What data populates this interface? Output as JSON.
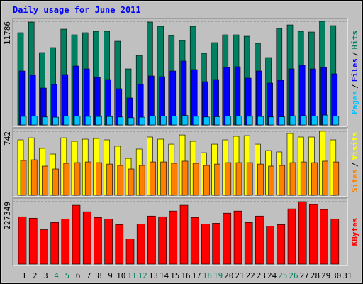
{
  "title": "Daily usage for June 2011",
  "chart_data": [
    {
      "type": "bar",
      "legend_separator": "/",
      "ylim": [
        0,
        11786
      ],
      "yticks": [
        11786
      ],
      "series": [
        {
          "name": "Hits",
          "color": "#008060",
          "values": [
            10492,
            11703,
            8232,
            8797,
            10896,
            10250,
            10492,
            10654,
            10654,
            9524,
            6376,
            7909,
            11703,
            11219,
            10170,
            9605,
            11219,
            8152,
            9362,
            10250,
            10250,
            10089,
            9282,
            7667,
            10977,
            11380,
            10654,
            10573,
            11786,
            11299,
            null
          ]
        },
        {
          "name": "Files",
          "color": "#0000ff",
          "values": [
            6133,
            5650,
            4197,
            4600,
            5730,
            6698,
            6376,
            5407,
            5165,
            4116,
            3067,
            4600,
            5568,
            5488,
            6133,
            7263,
            6295,
            4923,
            5165,
            6537,
            6618,
            5326,
            6133,
            4761,
            5084,
            6376,
            6779,
            6376,
            6537,
            5811,
            null
          ]
        },
        {
          "name": "Pages",
          "color": "#00c0ff",
          "values": [
            970,
            990,
            900,
            880,
            1010,
            990,
            970,
            960,
            950,
            900,
            820,
            880,
            1000,
            990,
            1000,
            1080,
            980,
            900,
            930,
            990,
            1000,
            980,
            960,
            900,
            920,
            1040,
            1060,
            1020,
            1120,
            1010,
            null
          ]
        }
      ]
    },
    {
      "type": "bar",
      "legend_separator": "/",
      "ylim": [
        0,
        742
      ],
      "yticks": [
        742
      ],
      "series": [
        {
          "name": "Visits",
          "color": "#ffff00",
          "values": [
            643,
            667,
            544,
            478,
            667,
            626,
            651,
            659,
            643,
            569,
            428,
            536,
            676,
            651,
            593,
            700,
            626,
            494,
            593,
            643,
            684,
            692,
            593,
            519,
            503,
            717,
            676,
            676,
            742,
            643,
            null
          ]
        },
        {
          "name": "Sites",
          "color": "#ff8000",
          "values": [
            404,
            412,
            338,
            305,
            371,
            379,
            387,
            379,
            362,
            346,
            305,
            346,
            387,
            387,
            371,
            396,
            371,
            346,
            362,
            379,
            379,
            379,
            362,
            338,
            346,
            379,
            387,
            379,
            396,
            387,
            null
          ]
        }
      ]
    },
    {
      "type": "bar",
      "ylim": [
        0,
        227349
      ],
      "yticks": [
        227349
      ],
      "categories": [
        "1",
        "2",
        "3",
        "4",
        "5",
        "6",
        "7",
        "8",
        "9",
        "10",
        "11",
        "12",
        "13",
        "14",
        "15",
        "16",
        "17",
        "18",
        "19",
        "20",
        "21",
        "22",
        "23",
        "24",
        "25",
        "26",
        "27",
        "28",
        "29",
        "30",
        "31"
      ],
      "category_colors": [
        "#000000",
        "#000000",
        "#000000",
        "#008060",
        "#008060",
        "#000000",
        "#000000",
        "#000000",
        "#000000",
        "#000000",
        "#008060",
        "#008060",
        "#000000",
        "#000000",
        "#000000",
        "#000000",
        "#000000",
        "#008060",
        "#008060",
        "#000000",
        "#000000",
        "#000000",
        "#000000",
        "#000000",
        "#008060",
        "#008060",
        "#000000",
        "#000000",
        "#000000",
        "#000000",
        "#000000"
      ],
      "series": [
        {
          "name": "KBytes",
          "color": "#ff0000",
          "values": [
            172458,
            167232,
            125424,
            151554,
            164619,
            214266,
            190749,
            169845,
            164619,
            143715,
            91455,
            146328,
            175071,
            172458,
            193362,
            214266,
            169845,
            146328,
            148941,
            185523,
            193362,
            151554,
            175071,
            138489,
            143715,
            201201,
            227349,
            216879,
            198588,
            164619,
            null
          ]
        }
      ]
    }
  ]
}
